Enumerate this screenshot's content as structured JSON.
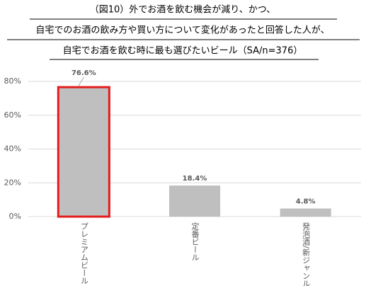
{
  "chart_data": {
    "type": "bar",
    "title": [
      "（図10）外でお酒を飲む機会が減り、かつ、",
      "自宅でのお酒の飲み方や買い方について変化があったと回答した人が、",
      "自宅でお酒を飲む時に最も選びたいビール（SA/n=376）"
    ],
    "categories": [
      "プレミアムビール",
      "定番ビール",
      "発泡酒/新ジャンル"
    ],
    "values": [
      76.6,
      18.4,
      4.8
    ],
    "value_labels": [
      "76.6%",
      "18.4%",
      "4.8%"
    ],
    "color": "#bfbfbf",
    "bar_edge_colors": [
      "#e31b1b",
      "none",
      "none"
    ],
    "ylim": [
      0,
      80
    ],
    "yticks": [
      {
        "value": 0,
        "label": "0%"
      },
      {
        "value": 20,
        "label": "20%"
      },
      {
        "value": 40,
        "label": "40%"
      },
      {
        "value": 60,
        "label": "60%"
      },
      {
        "value": 80,
        "label": "80%"
      }
    ],
    "grid": true
  }
}
